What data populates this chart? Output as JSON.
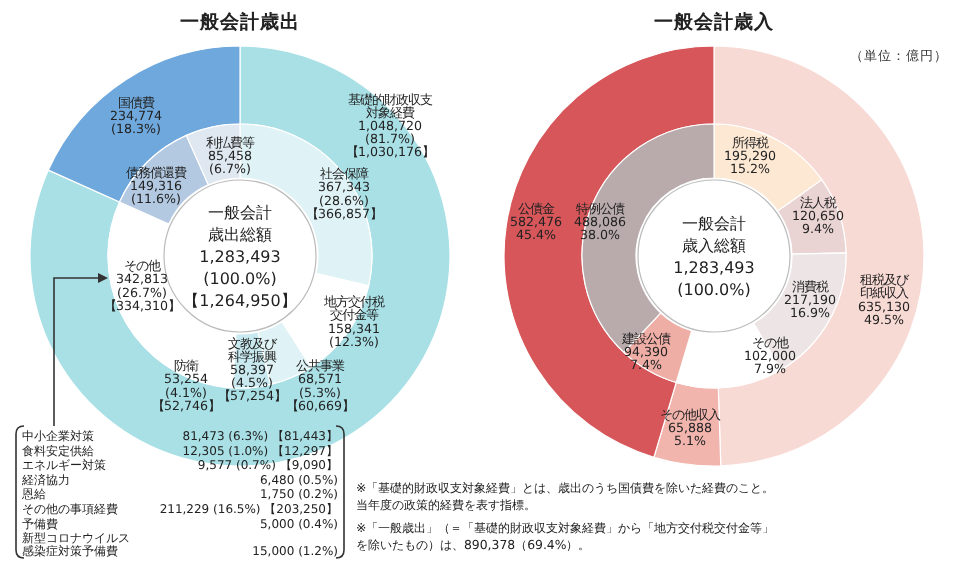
{
  "chart_data": [
    {
      "type": "donut",
      "title": "一般会計歳出",
      "categories": [
        "基礎的財政収支対象経費",
        "国債費"
      ],
      "values": [
        1048720,
        234774
      ],
      "colors": [
        "#a8e0e6",
        "#6fa8dc"
      ],
      "value_labels": [
        "1,048,720 (81.7%) 【1,030,176】",
        "234,774 (18.3%)"
      ],
      "annotations": [
        "中小企業対策",
        "81,473 (6.3%) 【81,443】",
        "食料安定供給",
        "12,305 (1.0%) 【12,297】",
        "エネルギー対策",
        "9,577 (0.7%) 【9,090】",
        "経済協力",
        "6,480 (0.5%)",
        "恩給",
        "1,750 (0.2%)",
        "その他の事項経費",
        "211,229 (16.5%) 【203,250】",
        "予備費",
        "5,000 (0.4%)",
        "新型コロナウイルス感染症対策予備費",
        "15,000 (1.2%)"
      ]
    },
    {
      "type": "donut",
      "categories": [
        "社会保障",
        "地方交付税交付金等",
        "公共事業",
        "文教及び科学振興",
        "防衛",
        "その他",
        "債務償還費",
        "利払費等"
      ],
      "values": [
        367343,
        158341,
        68571,
        58397,
        53254,
        342813,
        149316,
        85458
      ],
      "colors": [
        "#dff2f5",
        "#ffffff",
        "#dff2f5",
        "#c8e9ef",
        "#ffffff",
        "#ffffff",
        "#b3c9e2",
        "#dfe7f1"
      ],
      "value_labels": [
        "367,343 (28.6%) 【366,857】",
        "158,341 (12.3%)",
        "68,571 (5.3%) 【60,669】",
        "58,397 (4.5%) 【57,254】",
        "53,254 (4.1%) 【52,746】",
        "342,813 (26.7%) 【334,310】",
        "149,316 (11.6%)",
        "85,458 (6.7%)"
      ],
      "annotations": [
        "一般会計歳出総額",
        "1,283,493",
        "(100.0%)",
        "【1,264,950】"
      ]
    },
    {
      "type": "donut",
      "title": "一般会計歳入",
      "subtitle": "（単位：億円）",
      "categories": [
        "租税及び印紙収入",
        "その他収入",
        "公債金"
      ],
      "values": [
        635130,
        65888,
        582476
      ],
      "colors": [
        "#f8dad5",
        "#f1b5ad",
        "#d6565a"
      ],
      "value_labels": [
        "635,130 49.5%",
        "65,888 5.1%",
        "582,476 45.4%"
      ],
      "annotations": [
        "※「基礎的財政収支対象経費」とは、歳出のうち国債費を除いた経費のこと。当年度の政策的経費を表す指標。",
        "※「一般歳出」（＝「基礎的財政収支対象経費」から「地方交付税交付金等」を除いたもの）は、890,378（69.4%）。"
      ]
    },
    {
      "type": "donut",
      "categories": [
        "所得税",
        "法人税",
        "消費税",
        "その他",
        null,
        "建設公債",
        "特例公債"
      ],
      "values": [
        195290,
        120650,
        217190,
        102000,
        65888,
        94390,
        488086
      ],
      "colors": [
        "#fde8d3",
        "#ead3d3",
        "#ede5e5",
        "#ffffff",
        "#ffffff",
        "#eeaea6",
        "#b9abab"
      ],
      "value_labels": [
        "195,290 15.2%",
        "120,650 9.4%",
        "217,190 16.9%",
        "102,000 7.9%",
        null,
        "94,390 7.4%",
        "488,086 38.0%"
      ],
      "annotations": [
        "一般会計歳入総額",
        "1,283,493",
        "(100.0%)"
      ]
    }
  ]
}
